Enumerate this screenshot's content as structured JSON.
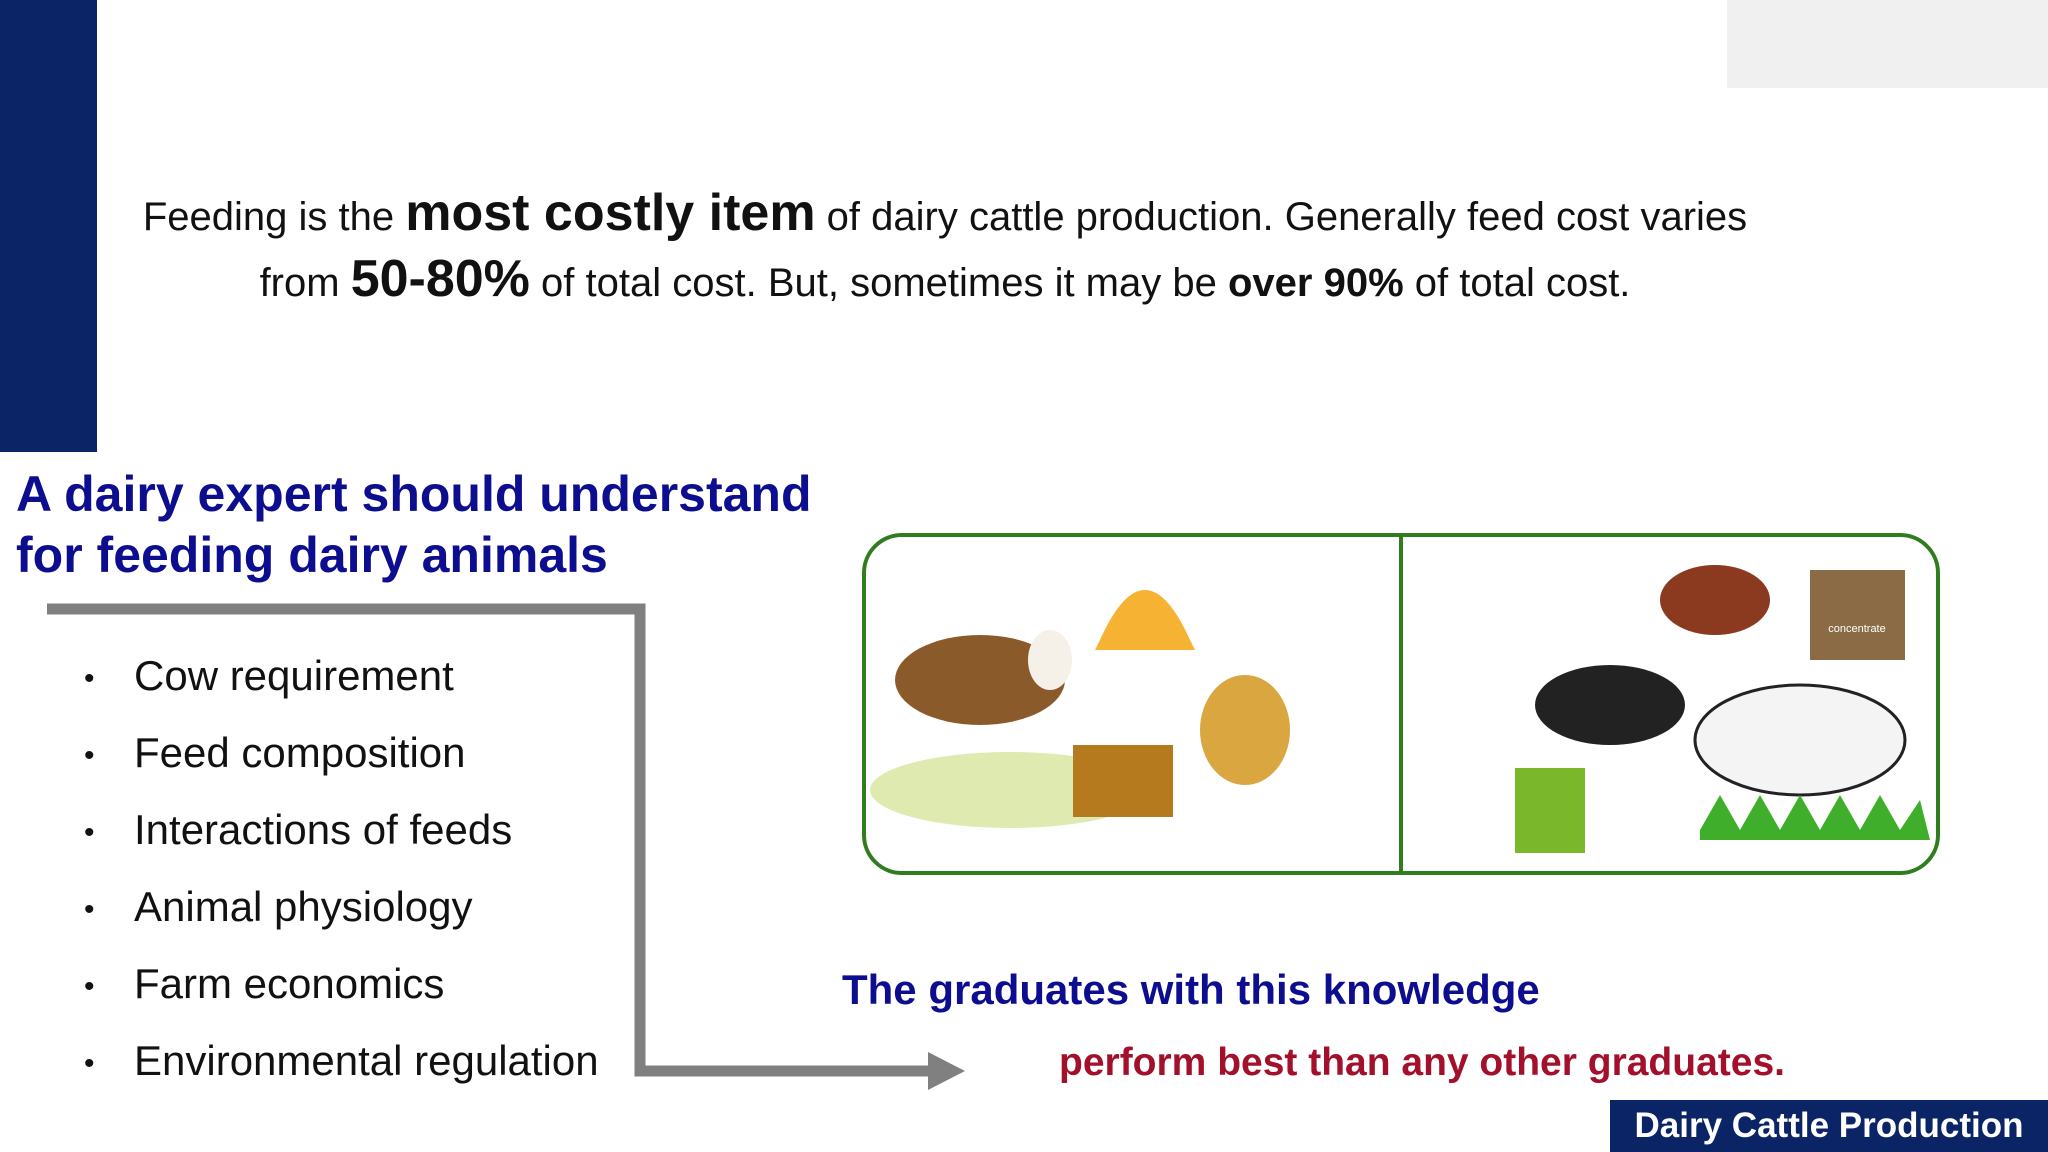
{
  "intro": [
    "Feeding is the ",
    "most costly item",
    " of dairy cattle production. Generally feed cost varies from ",
    "50-80%",
    " of total cost. But, sometimes it may be ",
    "over 90%",
    " of total cost."
  ],
  "heading": [
    "A dairy expert should understand",
    "for feeding dairy animals"
  ],
  "bullets": [
    "Cow requirement",
    "Feed composition",
    "Interactions of feeds",
    "Animal physiology",
    "Farm economics",
    "Environmental regulation"
  ],
  "conclusion": [
    "The graduates with this knowledge",
    "perform best than any other graduates."
  ],
  "illustration_label": "concentrate",
  "footer": "Dairy Cattle Production"
}
